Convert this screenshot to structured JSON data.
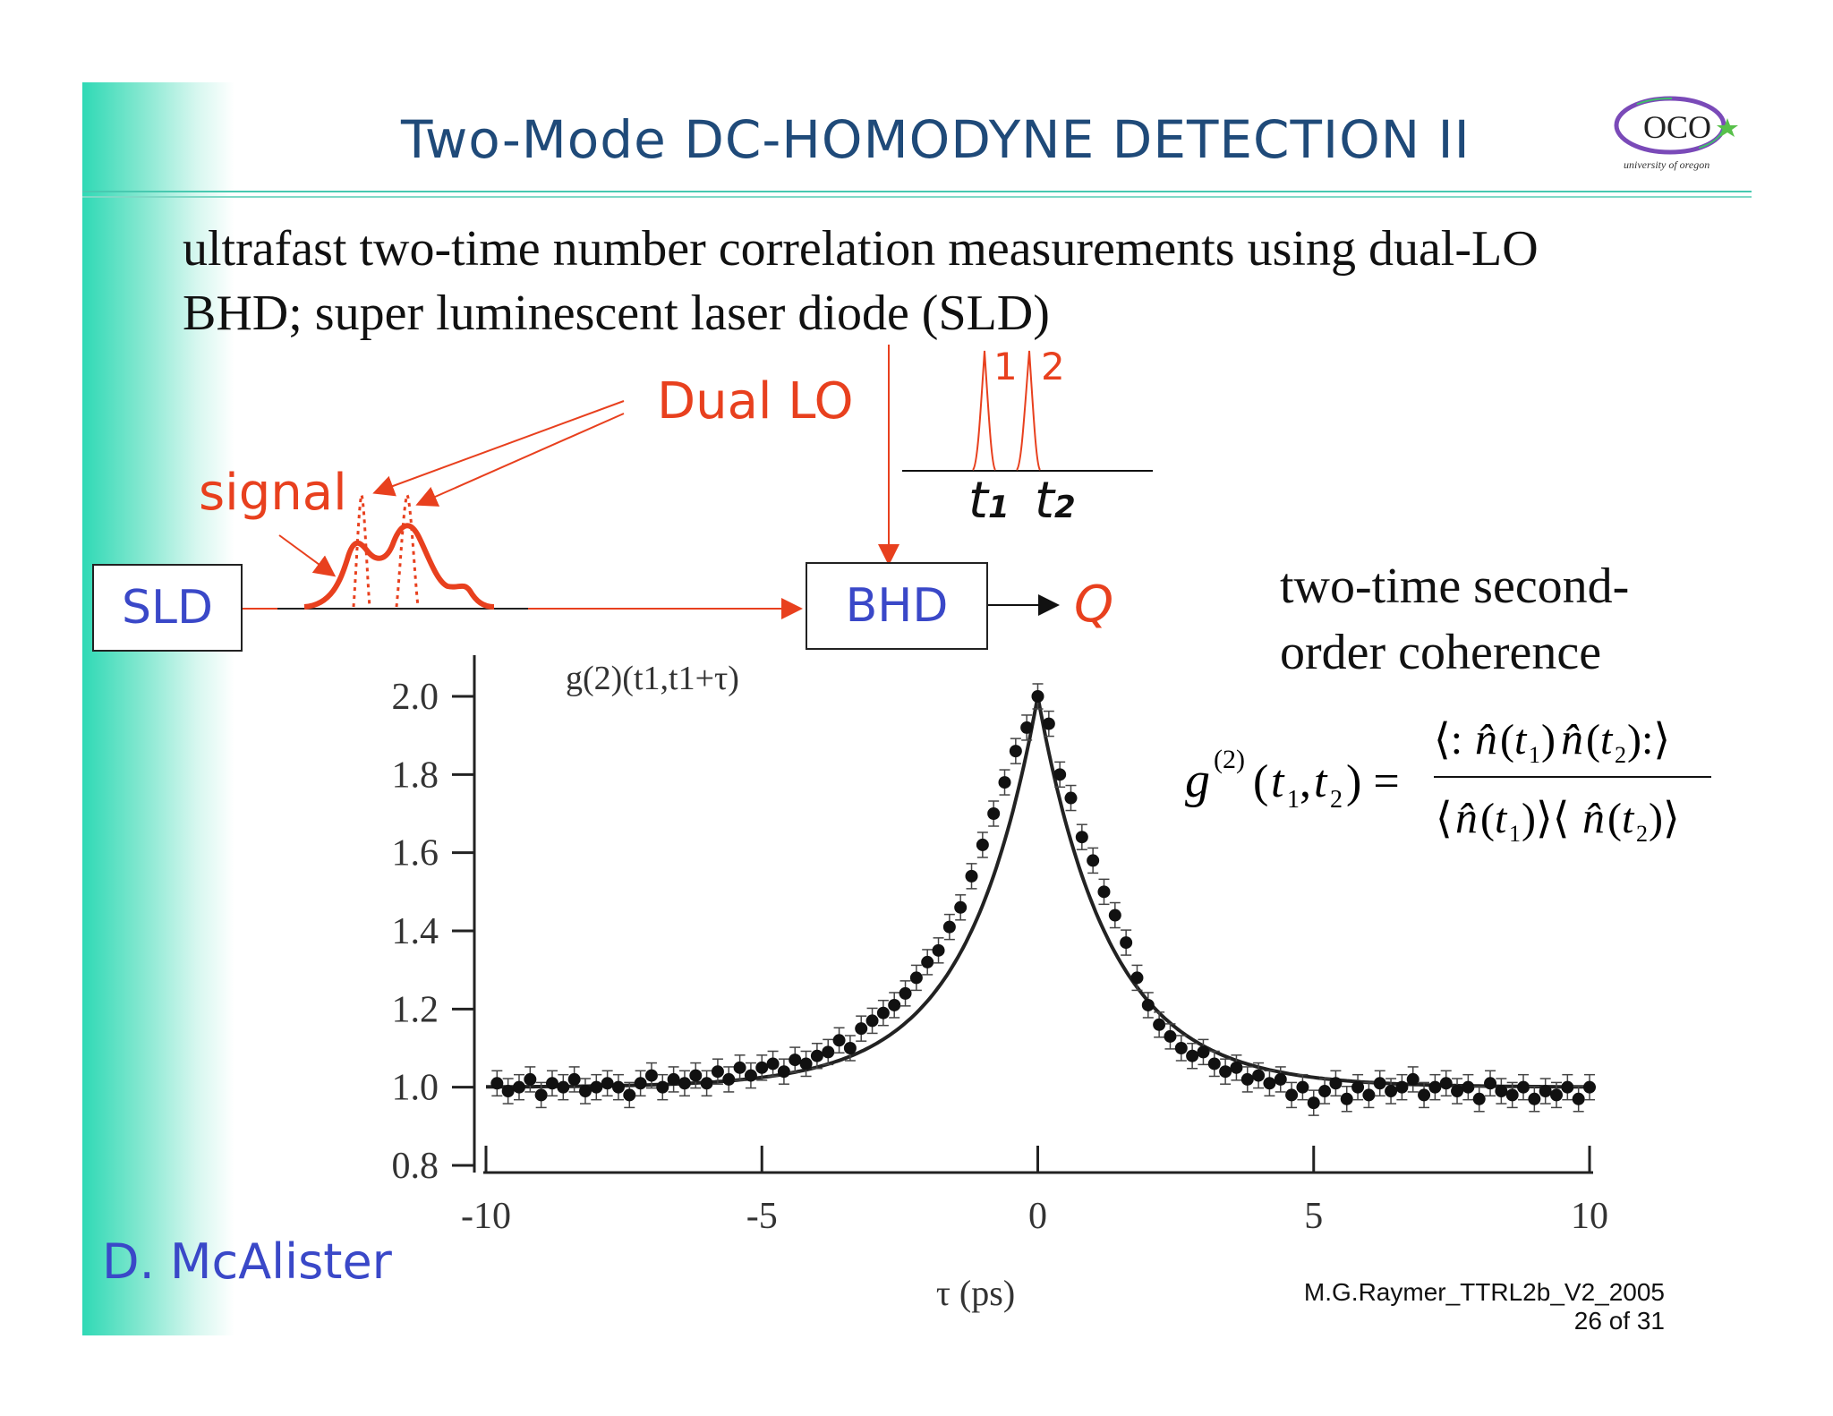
{
  "slide": {
    "title": "Two-Mode DC-HOMODYNE DETECTION II",
    "logo_text": "OCO",
    "logo_subtext": "university of oregon",
    "intro": "ultrafast two-time number correlation measurements using dual-LO BHD; super luminescent laser diode (SLD)",
    "author": "D. McAlister",
    "footer_line1": "M.G.Raymer_TTRL2b_V2_2005",
    "footer_line2": "26 of 31"
  },
  "diagram": {
    "sld_label": "SLD",
    "bhd_label": "BHD",
    "q_label": "Q",
    "signal_label": "signal",
    "dual_lo_label": "Dual LO",
    "pulse1_label": "1",
    "pulse2_label": "2",
    "t1_label": "t",
    "t1_sub": "1",
    "t2_label": "t",
    "t2_sub": "2"
  },
  "coherence": {
    "line1": "two-time second-",
    "line2": "order coherence",
    "formula": "g(2)(t1,t2) = <:n(t1) n(t2):> / <n(t1)><n(t2)>"
  },
  "colors": {
    "accent_red": "#e8401e",
    "box_blue": "#3a48c8",
    "title_blue": "#1f4a79",
    "sidebar_teal": "#2fd9b5"
  },
  "chart_data": {
    "type": "scatter",
    "title": "g(2)(t1,t1+τ)",
    "xlabel": "τ (ps)",
    "ylabel": "",
    "xlim": [
      -10,
      10
    ],
    "ylim": [
      0.8,
      2.0
    ],
    "xticks": [
      "-10",
      "-5",
      "0",
      "5",
      "10"
    ],
    "yticks": [
      "2.0",
      "1.8",
      "1.6",
      "1.4",
      "1.2",
      "1.0",
      "0.8"
    ],
    "series": [
      {
        "points": [
          [
            -9.8,
            1.01
          ],
          [
            -9.6,
            0.99
          ],
          [
            -9.4,
            1.0
          ],
          [
            -9.2,
            1.02
          ],
          [
            -9.0,
            0.98
          ],
          [
            -8.8,
            1.01
          ],
          [
            -8.6,
            1.0
          ],
          [
            -8.4,
            1.02
          ],
          [
            -8.2,
            0.99
          ],
          [
            -8.0,
            1.0
          ],
          [
            -7.8,
            1.01
          ],
          [
            -7.6,
            1.0
          ],
          [
            -7.4,
            0.98
          ],
          [
            -7.2,
            1.01
          ],
          [
            -7.0,
            1.03
          ],
          [
            -6.8,
            1.0
          ],
          [
            -6.6,
            1.02
          ],
          [
            -6.4,
            1.01
          ],
          [
            -6.2,
            1.03
          ],
          [
            -6.0,
            1.01
          ],
          [
            -5.8,
            1.04
          ],
          [
            -5.6,
            1.02
          ],
          [
            -5.4,
            1.05
          ],
          [
            -5.2,
            1.03
          ],
          [
            -5.0,
            1.05
          ],
          [
            -4.8,
            1.06
          ],
          [
            -4.6,
            1.04
          ],
          [
            -4.4,
            1.07
          ],
          [
            -4.2,
            1.06
          ],
          [
            -4.0,
            1.08
          ],
          [
            -3.8,
            1.09
          ],
          [
            -3.6,
            1.12
          ],
          [
            -3.4,
            1.1
          ],
          [
            -3.2,
            1.15
          ],
          [
            -3.0,
            1.17
          ],
          [
            -2.8,
            1.19
          ],
          [
            -2.6,
            1.21
          ],
          [
            -2.4,
            1.24
          ],
          [
            -2.2,
            1.28
          ],
          [
            -2.0,
            1.32
          ],
          [
            -1.8,
            1.35
          ],
          [
            -1.6,
            1.41
          ],
          [
            -1.4,
            1.46
          ],
          [
            -1.2,
            1.54
          ],
          [
            -1.0,
            1.62
          ],
          [
            -0.8,
            1.7
          ],
          [
            -0.6,
            1.78
          ],
          [
            -0.4,
            1.86
          ],
          [
            -0.2,
            1.92
          ],
          [
            0.0,
            2.0
          ],
          [
            0.2,
            1.93
          ],
          [
            0.4,
            1.8
          ],
          [
            0.6,
            1.74
          ],
          [
            0.8,
            1.64
          ],
          [
            1.0,
            1.58
          ],
          [
            1.2,
            1.5
          ],
          [
            1.4,
            1.44
          ],
          [
            1.6,
            1.37
          ],
          [
            1.8,
            1.28
          ],
          [
            2.0,
            1.21
          ],
          [
            2.2,
            1.16
          ],
          [
            2.4,
            1.13
          ],
          [
            2.6,
            1.1
          ],
          [
            2.8,
            1.08
          ],
          [
            3.0,
            1.09
          ],
          [
            3.2,
            1.06
          ],
          [
            3.4,
            1.04
          ],
          [
            3.6,
            1.05
          ],
          [
            3.8,
            1.02
          ],
          [
            4.0,
            1.03
          ],
          [
            4.2,
            1.01
          ],
          [
            4.4,
            1.02
          ],
          [
            4.6,
            0.98
          ],
          [
            4.8,
            1.0
          ],
          [
            5.0,
            0.96
          ],
          [
            5.2,
            0.99
          ],
          [
            5.4,
            1.01
          ],
          [
            5.6,
            0.97
          ],
          [
            5.8,
            1.0
          ],
          [
            6.0,
            0.98
          ],
          [
            6.2,
            1.01
          ],
          [
            6.4,
            0.99
          ],
          [
            6.6,
            1.0
          ],
          [
            6.8,
            1.02
          ],
          [
            7.0,
            0.98
          ],
          [
            7.2,
            1.0
          ],
          [
            7.4,
            1.01
          ],
          [
            7.6,
            0.99
          ],
          [
            7.8,
            1.0
          ],
          [
            8.0,
            0.97
          ],
          [
            8.2,
            1.01
          ],
          [
            8.4,
            0.99
          ],
          [
            8.6,
            0.98
          ],
          [
            8.8,
            1.0
          ],
          [
            9.0,
            0.97
          ],
          [
            9.2,
            0.99
          ],
          [
            9.4,
            0.98
          ],
          [
            9.6,
            1.0
          ],
          [
            9.8,
            0.97
          ],
          [
            10.0,
            1.0
          ]
        ]
      }
    ],
    "fit": "lorentzian-like cusp peaked at tau = 0, g = 2.0, baseline 1.0"
  }
}
